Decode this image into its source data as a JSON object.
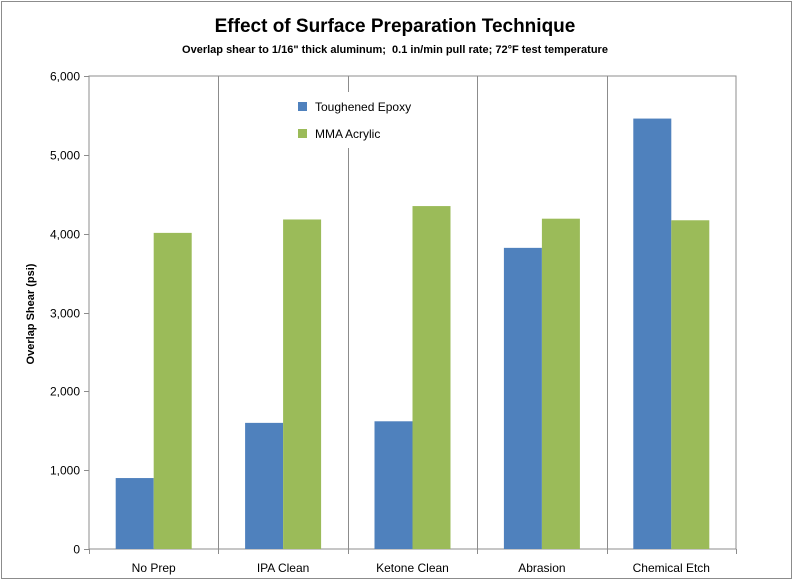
{
  "chart_data": {
    "type": "bar",
    "title": "Effect of Surface Preparation Technique",
    "subtitle": "Overlap shear to 1/16\" thick aluminum;  0.1 in/min pull rate; 72°F test temperature",
    "xlabel": "",
    "ylabel": "Overlap Shear (psi)",
    "ylim": [
      0,
      6000
    ],
    "yticks": [
      0,
      1000,
      2000,
      3000,
      4000,
      5000,
      6000
    ],
    "ytick_labels": [
      "0",
      "1,000",
      "2,000",
      "3,000",
      "4,000",
      "5,000",
      "6,000"
    ],
    "categories": [
      "No Prep",
      "IPA Clean",
      "Ketone Clean",
      "Abrasion",
      "Chemical Etch"
    ],
    "series": [
      {
        "name": "Toughened Epoxy",
        "color": "#4f81bd",
        "values": [
          900,
          1600,
          1620,
          3820,
          5460
        ]
      },
      {
        "name": "MMA Acrylic",
        "color": "#9bbb59",
        "values": [
          4010,
          4180,
          4350,
          4190,
          4170
        ]
      }
    ],
    "grid": {
      "vertical_category_lines": true,
      "horizontal": false
    },
    "legend": {
      "position": "top-center-left"
    }
  }
}
